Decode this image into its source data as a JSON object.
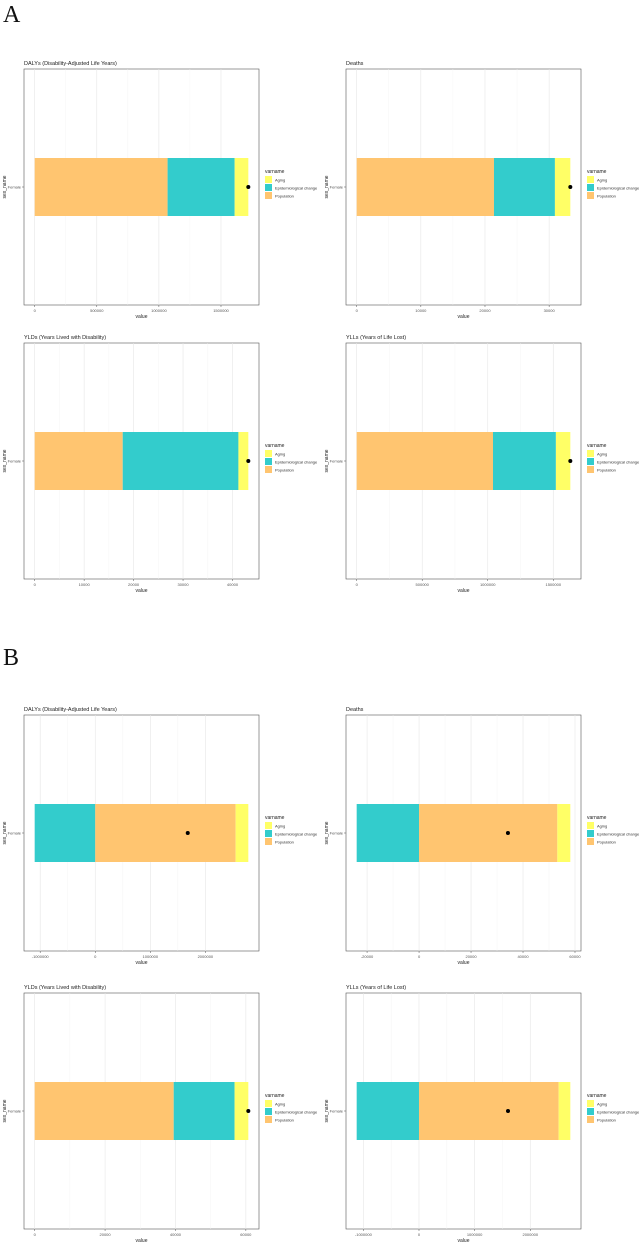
{
  "sections": [
    "A",
    "B"
  ],
  "colors": {
    "Aging": "#FFFF66",
    "Epidemiological change": "#33CCCC",
    "Population": "#FFC570",
    "dot": "#000000"
  },
  "chart_data": [
    {
      "type": "bar",
      "orientation": "horizontal-stacked",
      "section": "A",
      "title": "DALYs (Disability-Adjusted Life Years)",
      "category": "Female",
      "xlabel": "value",
      "ylabel": "sex_name",
      "legend_title": "varname",
      "legend": [
        "Aging",
        "Epidemiological change",
        "Population"
      ],
      "legend_placement": "right",
      "ticks": [
        0,
        500000,
        1000000,
        1500000
      ],
      "values": {
        "Population": 1070000,
        "Epidemiological change": 540000,
        "Aging": 110000
      },
      "net_total": 1720000
    },
    {
      "type": "bar",
      "orientation": "horizontal-stacked",
      "section": "A",
      "title": "Deaths",
      "category": "Female",
      "xlabel": "value",
      "ylabel": "sex_name",
      "legend_title": "varname",
      "legend": [
        "Aging",
        "Epidemiological change",
        "Population"
      ],
      "legend_placement": "right",
      "ticks": [
        0,
        10000,
        20000,
        30000
      ],
      "values": {
        "Population": 21400,
        "Epidemiological change": 9500,
        "Aging": 2400
      },
      "net_total": 33300
    },
    {
      "type": "bar",
      "orientation": "horizontal-stacked",
      "section": "A",
      "title": "YLDs (Years Lived with Disability)",
      "category": "Female",
      "xlabel": "value",
      "ylabel": "sex_name",
      "legend_title": "varname",
      "legend": [
        "Aging",
        "Epidemiological change",
        "Population"
      ],
      "legend_placement": "right",
      "ticks": [
        0,
        10000,
        20000,
        30000,
        40000
      ],
      "values": {
        "Population": 17800,
        "Epidemiological change": 23400,
        "Aging": 2000
      },
      "net_total": 43200
    },
    {
      "type": "bar",
      "orientation": "horizontal-stacked",
      "section": "A",
      "title": "YLLs (Years of Life Lost)",
      "category": "Female",
      "xlabel": "value",
      "ylabel": "sex_name",
      "legend_title": "varname",
      "legend": [
        "Aging",
        "Epidemiological change",
        "Population"
      ],
      "legend_placement": "right",
      "ticks": [
        0,
        500000,
        1000000,
        1500000
      ],
      "values": {
        "Population": 1040000,
        "Epidemiological change": 480000,
        "Aging": 110000
      },
      "net_total": 1630000
    },
    {
      "type": "bar",
      "orientation": "horizontal-stacked",
      "section": "B",
      "title": "DALYs (Disability-Adjusted Life Years)",
      "category": "Female",
      "xlabel": "value",
      "ylabel": "sex_name",
      "legend_title": "varname",
      "legend": [
        "Aging",
        "Epidemiological change",
        "Population"
      ],
      "legend_placement": "right",
      "ticks": [
        -1000000,
        0,
        1000000,
        2000000
      ],
      "values": {
        "Population": 2550000,
        "Epidemiological change": -1100000,
        "Aging": 230000
      },
      "net_total": 1680000
    },
    {
      "type": "bar",
      "orientation": "horizontal-stacked",
      "section": "B",
      "title": "Deaths",
      "category": "Female",
      "xlabel": "value",
      "ylabel": "sex_name",
      "legend_title": "varname",
      "legend": [
        "Aging",
        "Epidemiological change",
        "Population"
      ],
      "legend_placement": "right",
      "ticks": [
        -20000,
        0,
        20000,
        40000,
        60000
      ],
      "values": {
        "Population": 53200,
        "Epidemiological change": -24000,
        "Aging": 5000
      },
      "net_total": 34200
    },
    {
      "type": "bar",
      "orientation": "horizontal-stacked",
      "section": "B",
      "title": "YLDs (Years Lived with Disability)",
      "category": "Female",
      "xlabel": "value",
      "ylabel": "sex_name",
      "legend_title": "varname",
      "legend": [
        "Aging",
        "Epidemiological change",
        "Population"
      ],
      "legend_placement": "right",
      "ticks": [
        0,
        20000,
        40000,
        60000
      ],
      "values": {
        "Population": 39500,
        "Epidemiological change": 17300,
        "Aging": 3900
      },
      "net_total": 60700
    },
    {
      "type": "bar",
      "orientation": "horizontal-stacked",
      "section": "B",
      "title": "YLLs (Years of Life Lost)",
      "category": "Female",
      "xlabel": "value",
      "ylabel": "sex_name",
      "legend_title": "varname",
      "legend": [
        "Aging",
        "Epidemiological change",
        "Population"
      ],
      "legend_placement": "right",
      "ticks": [
        -1000000,
        0,
        1000000,
        2000000
      ],
      "values": {
        "Population": 2510000,
        "Epidemiological change": -1120000,
        "Aging": 210000
      },
      "net_total": 1600000
    }
  ]
}
